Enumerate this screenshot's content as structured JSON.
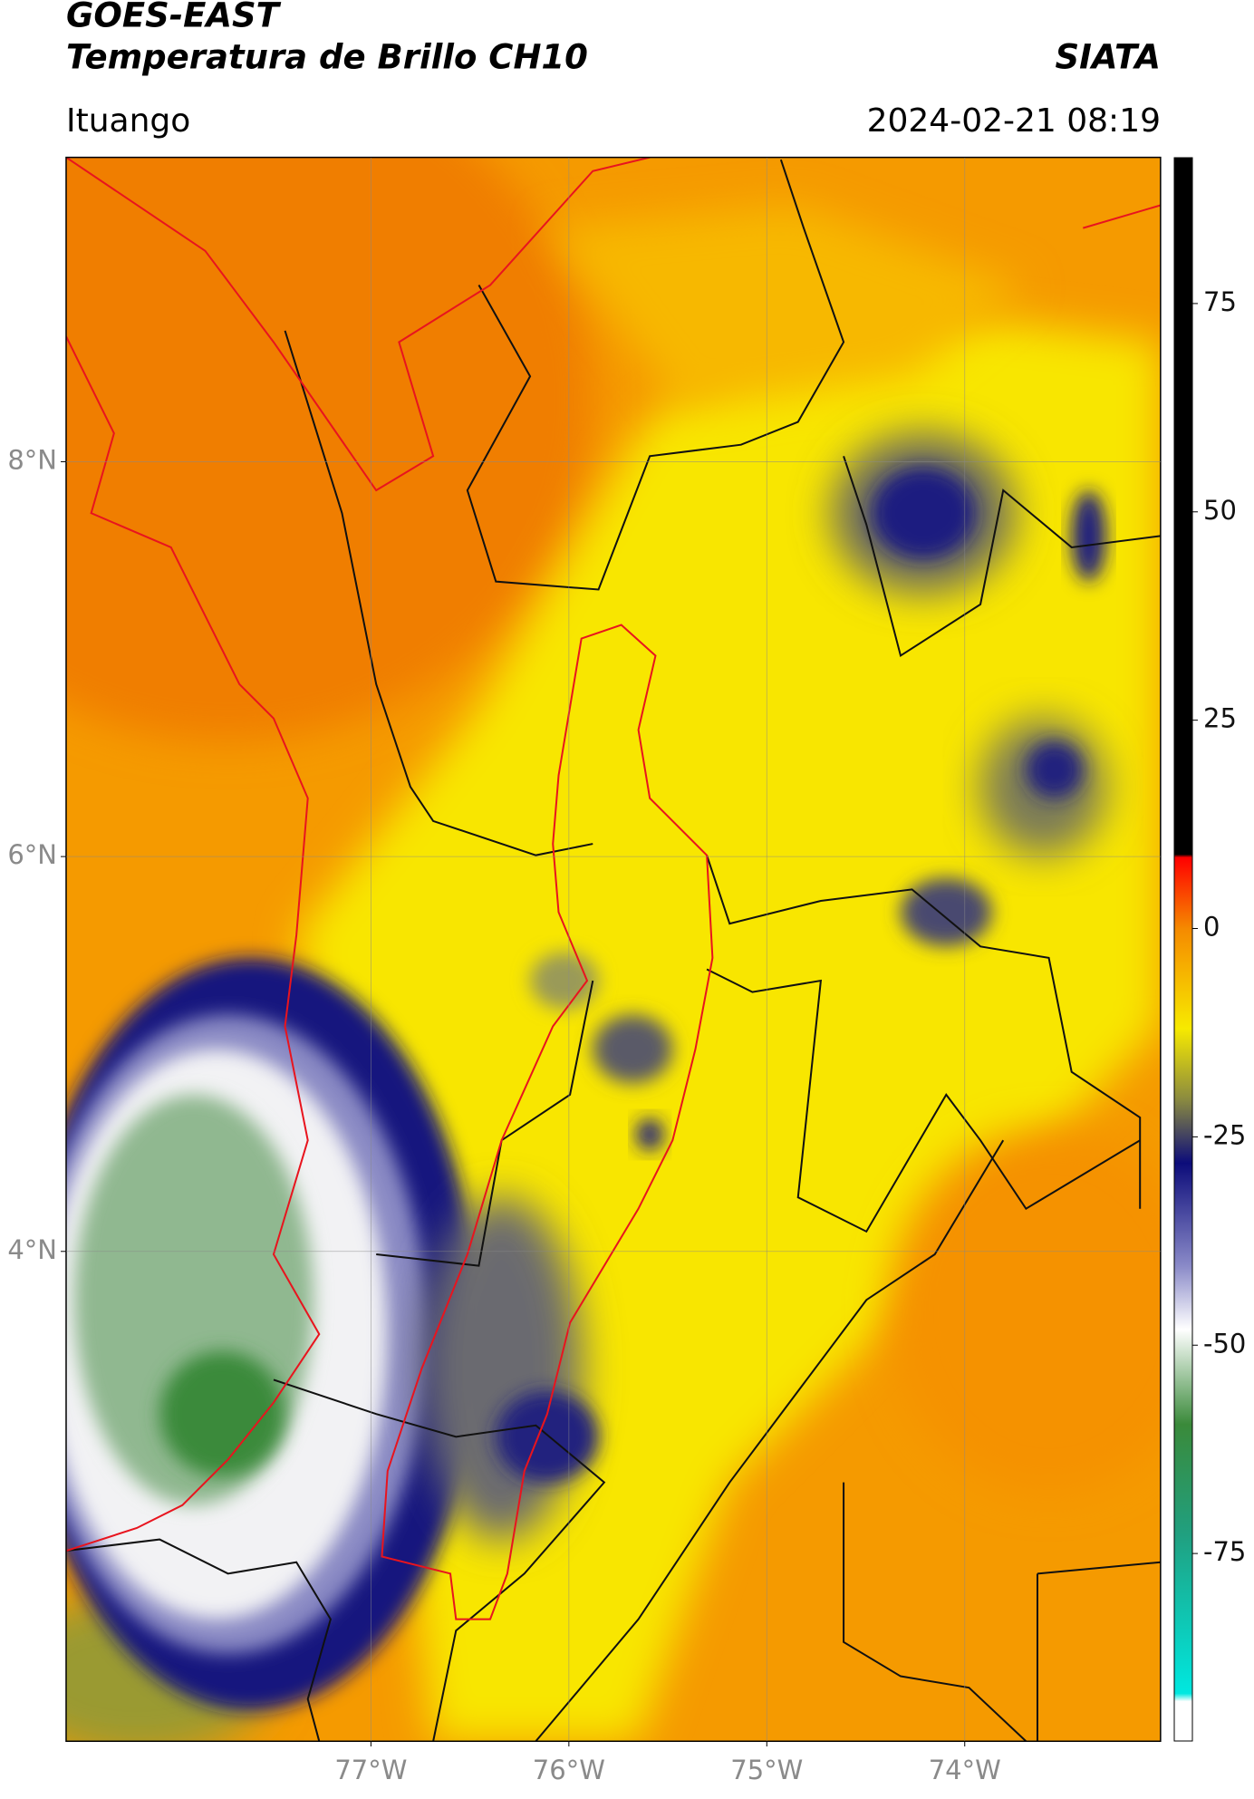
{
  "header": {
    "title": "GOES-EAST",
    "subtitle": "Temperatura de Brillo CH10",
    "source": "SIATA",
    "location": "Ituango",
    "timestamp": "2024-02-21 08:19"
  },
  "map": {
    "lat_range": [
      1.52,
      9.54
    ],
    "lon_range": [
      -78.54,
      -73.01
    ],
    "lat_ticks": [
      {
        "value": 8,
        "label": "8°N"
      },
      {
        "value": 6,
        "label": "6°N"
      },
      {
        "value": 4,
        "label": "4°N"
      }
    ],
    "lon_ticks": [
      {
        "value": -77,
        "label": "77°W"
      },
      {
        "value": -76,
        "label": "76°W"
      },
      {
        "value": -75,
        "label": "75°W"
      },
      {
        "value": -74,
        "label": "74°W"
      }
    ]
  },
  "colorbar": {
    "range": [
      -97.5,
      92.5
    ],
    "ticks": [
      75,
      50,
      25,
      0,
      -25,
      -50,
      -75
    ]
  }
}
